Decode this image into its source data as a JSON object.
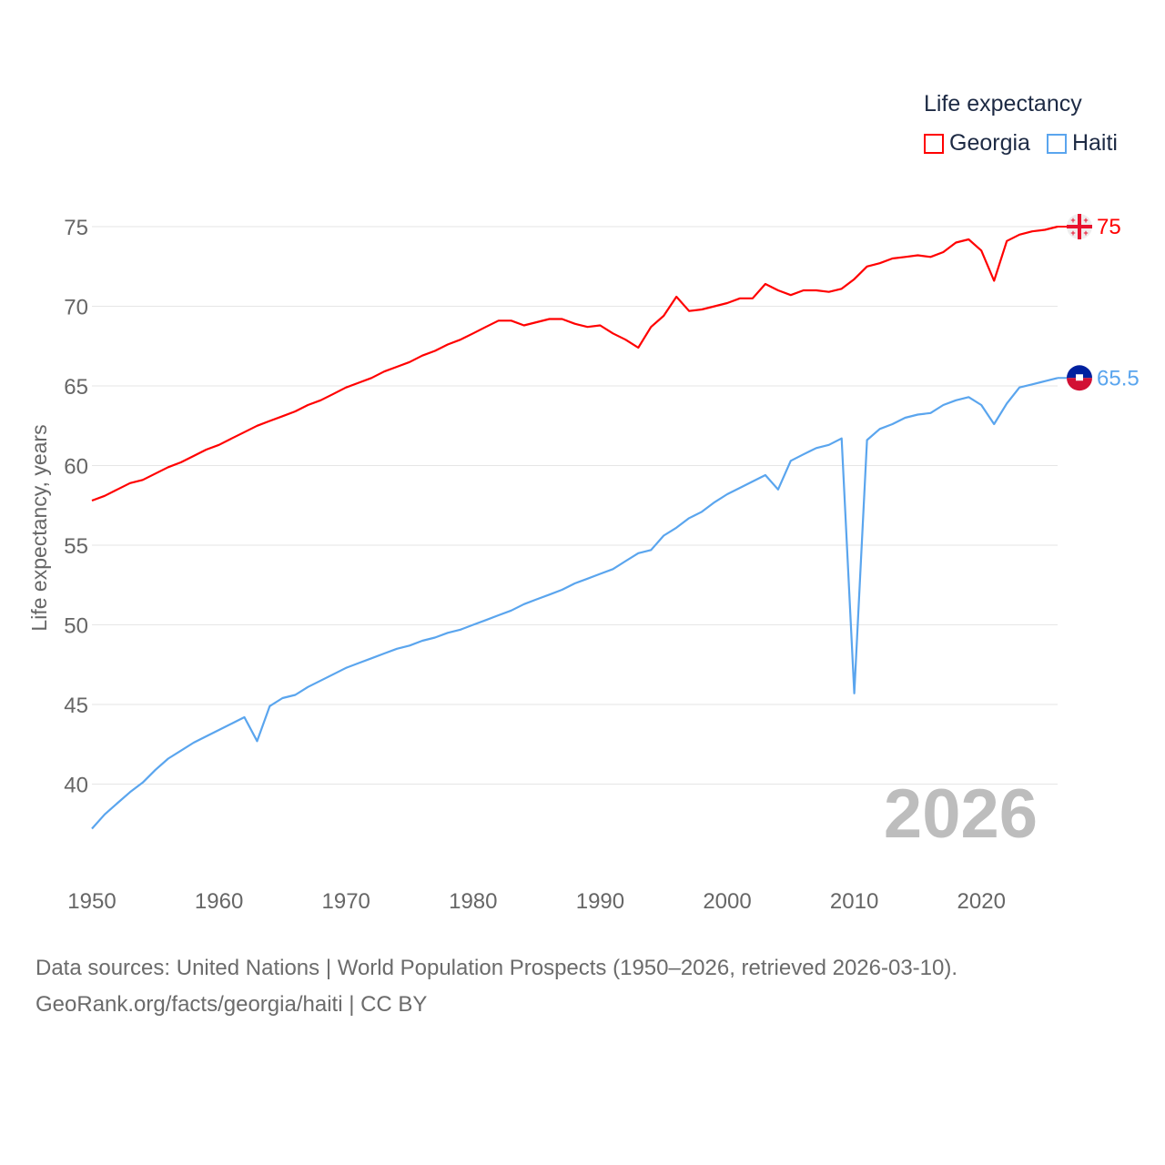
{
  "chart_data": {
    "type": "line",
    "title": "Life expectancy",
    "ylabel": "Life expectancy, years",
    "xlabel": "",
    "ylim": [
      35,
      77
    ],
    "xlim": [
      1950,
      2026
    ],
    "y_ticks": [
      40,
      45,
      50,
      55,
      60,
      65,
      70,
      75
    ],
    "x_ticks": [
      1950,
      1960,
      1970,
      1980,
      1990,
      2000,
      2010,
      2020
    ],
    "grid": true,
    "legend_position": "top-right",
    "current_year_label": "2026",
    "x": [
      1950,
      1951,
      1952,
      1953,
      1954,
      1955,
      1956,
      1957,
      1958,
      1959,
      1960,
      1961,
      1962,
      1963,
      1964,
      1965,
      1966,
      1967,
      1968,
      1969,
      1970,
      1971,
      1972,
      1973,
      1974,
      1975,
      1976,
      1977,
      1978,
      1979,
      1980,
      1981,
      1982,
      1983,
      1984,
      1985,
      1986,
      1987,
      1988,
      1989,
      1990,
      1991,
      1992,
      1993,
      1994,
      1995,
      1996,
      1997,
      1998,
      1999,
      2000,
      2001,
      2002,
      2003,
      2004,
      2005,
      2006,
      2007,
      2008,
      2009,
      2010,
      2011,
      2012,
      2013,
      2014,
      2015,
      2016,
      2017,
      2018,
      2019,
      2020,
      2021,
      2022,
      2023,
      2024,
      2025,
      2026
    ],
    "series": [
      {
        "name": "Georgia",
        "color": "#ff0000",
        "end_label": "75",
        "values": [
          57.8,
          58.1,
          58.5,
          58.9,
          59.1,
          59.5,
          59.9,
          60.2,
          60.6,
          61.0,
          61.3,
          61.7,
          62.1,
          62.5,
          62.8,
          63.1,
          63.4,
          63.8,
          64.1,
          64.5,
          64.9,
          65.2,
          65.5,
          65.9,
          66.2,
          66.5,
          66.9,
          67.2,
          67.6,
          67.9,
          68.3,
          68.7,
          69.1,
          69.1,
          68.8,
          69.0,
          69.2,
          69.2,
          68.9,
          68.7,
          68.8,
          68.3,
          67.9,
          67.4,
          68.7,
          69.4,
          70.6,
          69.7,
          69.8,
          70.0,
          70.2,
          70.5,
          70.5,
          71.4,
          71.0,
          70.7,
          71.0,
          71.0,
          70.9,
          71.1,
          71.7,
          72.5,
          72.7,
          73.0,
          73.1,
          73.2,
          73.1,
          73.4,
          74.0,
          74.2,
          73.5,
          71.6,
          74.1,
          74.5,
          74.7,
          74.8,
          75.0
        ]
      },
      {
        "name": "Haiti",
        "color": "#5aa5ee",
        "end_label": "65.5",
        "values": [
          37.2,
          38.1,
          38.8,
          39.5,
          40.1,
          40.9,
          41.6,
          42.1,
          42.6,
          43.0,
          43.4,
          43.8,
          44.2,
          42.7,
          44.9,
          45.4,
          45.6,
          46.1,
          46.5,
          46.9,
          47.3,
          47.6,
          47.9,
          48.2,
          48.5,
          48.7,
          49.0,
          49.2,
          49.5,
          49.7,
          50.0,
          50.3,
          50.6,
          50.9,
          51.3,
          51.6,
          51.9,
          52.2,
          52.6,
          52.9,
          53.2,
          53.5,
          54.0,
          54.5,
          54.7,
          55.6,
          56.1,
          56.7,
          57.1,
          57.7,
          58.2,
          58.6,
          59.0,
          59.4,
          58.5,
          60.3,
          60.7,
          61.1,
          61.3,
          61.7,
          45.7,
          61.6,
          62.3,
          62.6,
          63.0,
          63.2,
          63.3,
          63.8,
          64.1,
          64.3,
          63.8,
          62.6,
          63.9,
          64.9,
          65.1,
          65.3,
          65.5
        ]
      }
    ]
  },
  "source": {
    "line1": "Data sources: United Nations | World Population Prospects (1950–2026, retrieved 2026-03-10).",
    "line2": "GeoRank.org/facts/georgia/haiti | CC BY"
  }
}
